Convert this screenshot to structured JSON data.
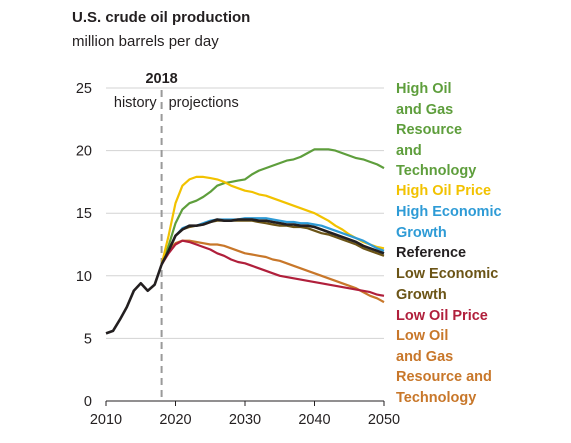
{
  "chart_data": {
    "type": "line",
    "title": "U.S. crude oil production",
    "subtitle": "million barrels per day",
    "xlim": [
      2010,
      2050
    ],
    "ylim": [
      0,
      25
    ],
    "x_ticks": [
      "2010",
      "2020",
      "2030",
      "2040",
      "2050"
    ],
    "y_ticks": [
      "0",
      "5",
      "10",
      "15",
      "20",
      "25"
    ],
    "grid": "horizontal",
    "legend": "right, labels beside line ends",
    "annotations": {
      "divider_year": "2018",
      "history_label": "history",
      "projections_label": "projections"
    },
    "history": {
      "color": "#231f20",
      "x": [
        2010,
        2011,
        2012,
        2013,
        2014,
        2015,
        2016,
        2017,
        2018
      ],
      "y": [
        5.4,
        5.6,
        6.5,
        7.5,
        8.8,
        9.4,
        8.8,
        9.3,
        10.9
      ]
    },
    "series": [
      {
        "name": "High Oil and Gas Resource and Technology",
        "label_lines": [
          "High Oil",
          "and Gas",
          "Resource",
          "and",
          "Technology"
        ],
        "color": "#5e9e3c",
        "x": [
          2018,
          2019,
          2020,
          2021,
          2022,
          2023,
          2024,
          2025,
          2026,
          2027,
          2028,
          2029,
          2030,
          2031,
          2032,
          2033,
          2034,
          2035,
          2036,
          2037,
          2038,
          2039,
          2040,
          2041,
          2042,
          2043,
          2044,
          2045,
          2046,
          2047,
          2048,
          2049,
          2050
        ],
        "y": [
          10.9,
          12.4,
          14.2,
          15.3,
          15.8,
          16.0,
          16.3,
          16.7,
          17.2,
          17.4,
          17.5,
          17.6,
          17.7,
          18.1,
          18.4,
          18.6,
          18.8,
          19.0,
          19.2,
          19.3,
          19.5,
          19.8,
          20.1,
          20.1,
          20.1,
          20.0,
          19.8,
          19.6,
          19.4,
          19.3,
          19.1,
          18.9,
          18.6
        ]
      },
      {
        "name": "High Oil Price",
        "label_lines": [
          "High Oil Price"
        ],
        "color": "#f2c200",
        "x": [
          2018,
          2019,
          2020,
          2021,
          2022,
          2023,
          2024,
          2025,
          2026,
          2027,
          2028,
          2029,
          2030,
          2031,
          2032,
          2033,
          2034,
          2035,
          2036,
          2037,
          2038,
          2039,
          2040,
          2041,
          2042,
          2043,
          2044,
          2045,
          2046,
          2047,
          2048,
          2049,
          2050
        ],
        "y": [
          10.9,
          13.2,
          15.8,
          17.2,
          17.7,
          17.9,
          17.9,
          17.8,
          17.7,
          17.5,
          17.2,
          17.0,
          16.8,
          16.7,
          16.5,
          16.4,
          16.2,
          16.0,
          15.8,
          15.6,
          15.4,
          15.2,
          15.0,
          14.7,
          14.4,
          14.0,
          13.7,
          13.3,
          13.0,
          12.7,
          12.5,
          12.3,
          12.2
        ]
      },
      {
        "name": "High Economic Growth",
        "label_lines": [
          "High Economic",
          "Growth"
        ],
        "color": "#2e9bd6",
        "x": [
          2018,
          2019,
          2020,
          2021,
          2022,
          2023,
          2024,
          2025,
          2026,
          2027,
          2028,
          2029,
          2030,
          2031,
          2032,
          2033,
          2034,
          2035,
          2036,
          2037,
          2038,
          2039,
          2040,
          2041,
          2042,
          2043,
          2044,
          2045,
          2046,
          2047,
          2048,
          2049,
          2050
        ],
        "y": [
          10.9,
          12.0,
          13.2,
          13.8,
          14.0,
          14.0,
          14.2,
          14.4,
          14.5,
          14.5,
          14.5,
          14.5,
          14.6,
          14.6,
          14.6,
          14.6,
          14.5,
          14.4,
          14.3,
          14.3,
          14.2,
          14.2,
          14.1,
          14.0,
          13.8,
          13.6,
          13.4,
          13.2,
          13.0,
          12.8,
          12.5,
          12.2,
          12.0
        ]
      },
      {
        "name": "Reference",
        "label_lines": [
          "Reference"
        ],
        "color": "#231f20",
        "x": [
          2018,
          2019,
          2020,
          2021,
          2022,
          2023,
          2024,
          2025,
          2026,
          2027,
          2028,
          2029,
          2030,
          2031,
          2032,
          2033,
          2034,
          2035,
          2036,
          2037,
          2038,
          2039,
          2040,
          2041,
          2042,
          2043,
          2044,
          2045,
          2046,
          2047,
          2048,
          2049,
          2050
        ],
        "y": [
          10.9,
          12.0,
          13.2,
          13.7,
          14.0,
          14.0,
          14.1,
          14.3,
          14.5,
          14.4,
          14.4,
          14.5,
          14.5,
          14.5,
          14.4,
          14.4,
          14.3,
          14.2,
          14.1,
          14.1,
          14.0,
          14.0,
          13.9,
          13.7,
          13.5,
          13.3,
          13.1,
          12.9,
          12.7,
          12.4,
          12.2,
          12.0,
          11.8
        ]
      },
      {
        "name": "Low Economic Growth",
        "label_lines": [
          "Low Economic",
          "Growth"
        ],
        "color": "#6b5416",
        "x": [
          2018,
          2019,
          2020,
          2021,
          2022,
          2023,
          2024,
          2025,
          2026,
          2027,
          2028,
          2029,
          2030,
          2031,
          2032,
          2033,
          2034,
          2035,
          2036,
          2037,
          2038,
          2039,
          2040,
          2041,
          2042,
          2043,
          2044,
          2045,
          2046,
          2047,
          2048,
          2049,
          2050
        ],
        "y": [
          10.9,
          12.0,
          13.2,
          13.7,
          13.9,
          14.0,
          14.1,
          14.3,
          14.4,
          14.4,
          14.4,
          14.4,
          14.4,
          14.4,
          14.3,
          14.2,
          14.1,
          14.0,
          14.0,
          13.9,
          13.9,
          13.8,
          13.6,
          13.4,
          13.3,
          13.1,
          12.9,
          12.7,
          12.5,
          12.2,
          12.0,
          11.8,
          11.6
        ]
      },
      {
        "name": "Low Oil Price",
        "label_lines": [
          "Low Oil Price"
        ],
        "color": "#b01f3b",
        "x": [
          2018,
          2019,
          2020,
          2021,
          2022,
          2023,
          2024,
          2025,
          2026,
          2027,
          2028,
          2029,
          2030,
          2031,
          2032,
          2033,
          2034,
          2035,
          2036,
          2037,
          2038,
          2039,
          2040,
          2041,
          2042,
          2043,
          2044,
          2045,
          2046,
          2047,
          2048,
          2049,
          2050
        ],
        "y": [
          10.9,
          11.8,
          12.5,
          12.8,
          12.7,
          12.5,
          12.3,
          12.1,
          11.8,
          11.6,
          11.3,
          11.1,
          11.0,
          10.8,
          10.6,
          10.4,
          10.2,
          10.0,
          9.9,
          9.8,
          9.7,
          9.6,
          9.5,
          9.4,
          9.3,
          9.2,
          9.1,
          9.0,
          8.9,
          8.8,
          8.7,
          8.5,
          8.4
        ]
      },
      {
        "name": "Low Oil and Gas Resource and Technology",
        "label_lines": [
          "Low Oil",
          "and Gas",
          "Resource and",
          "Technology"
        ],
        "color": "#c8772a",
        "x": [
          2018,
          2019,
          2020,
          2021,
          2022,
          2023,
          2024,
          2025,
          2026,
          2027,
          2028,
          2029,
          2030,
          2031,
          2032,
          2033,
          2034,
          2035,
          2036,
          2037,
          2038,
          2039,
          2040,
          2041,
          2042,
          2043,
          2044,
          2045,
          2046,
          2047,
          2048,
          2049,
          2050
        ],
        "y": [
          10.9,
          12.0,
          12.6,
          12.8,
          12.8,
          12.7,
          12.6,
          12.5,
          12.5,
          12.4,
          12.2,
          12.0,
          11.8,
          11.7,
          11.6,
          11.5,
          11.3,
          11.2,
          11.0,
          10.8,
          10.6,
          10.4,
          10.2,
          10.0,
          9.8,
          9.6,
          9.4,
          9.2,
          9.0,
          8.7,
          8.4,
          8.2,
          7.9
        ]
      }
    ]
  }
}
